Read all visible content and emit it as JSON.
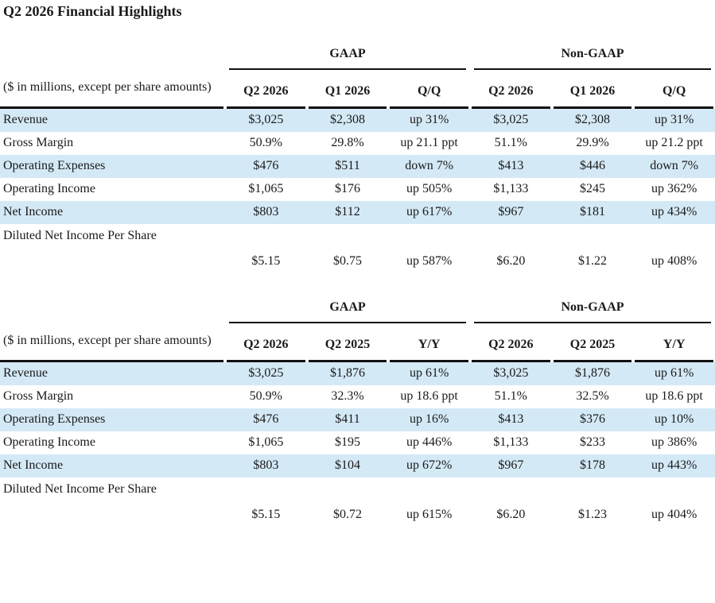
{
  "title": "Q2 2026 Financial Highlights",
  "colors": {
    "shaded_row": "#d4e9f6",
    "rule": "#111111",
    "text": "#1a1a1a",
    "background": "#ffffff"
  },
  "tables": [
    {
      "name": "quarter-over-quarter",
      "note": "($ in millions, except per share amounts)",
      "groups": [
        "GAAP",
        "Non-GAAP"
      ],
      "columns": [
        "Q2 2026",
        "Q1 2026",
        "Q/Q",
        "Q2 2026",
        "Q1 2026",
        "Q/Q"
      ],
      "rows": [
        {
          "label": "Revenue",
          "values": [
            "$3,025",
            "$2,308",
            "up 31%",
            "$3,025",
            "$2,308",
            "up 31%"
          ]
        },
        {
          "label": "Gross Margin",
          "values": [
            "50.9%",
            "29.8%",
            "up 21.1 ppt",
            "51.1%",
            "29.9%",
            "up 21.2 ppt"
          ]
        },
        {
          "label": "Operating Expenses",
          "values": [
            "$476",
            "$511",
            "down 7%",
            "$413",
            "$446",
            "down 7%"
          ]
        },
        {
          "label": "Operating Income",
          "values": [
            "$1,065",
            "$176",
            "up 505%",
            "$1,133",
            "$245",
            "up 362%"
          ]
        },
        {
          "label": "Net Income",
          "values": [
            "$803",
            "$112",
            "up 617%",
            "$967",
            "$181",
            "up 434%"
          ]
        },
        {
          "label": "Diluted Net Income Per Share",
          "values": [
            "$5.15",
            "$0.75",
            "up 587%",
            "$6.20",
            "$1.22",
            "up 408%"
          ]
        }
      ]
    },
    {
      "name": "year-over-year",
      "note": "($ in millions, except per share amounts)",
      "groups": [
        "GAAP",
        "Non-GAAP"
      ],
      "columns": [
        "Q2 2026",
        "Q2 2025",
        "Y/Y",
        "Q2 2026",
        "Q2 2025",
        "Y/Y"
      ],
      "rows": [
        {
          "label": "Revenue",
          "values": [
            "$3,025",
            "$1,876",
            "up 61%",
            "$3,025",
            "$1,876",
            "up 61%"
          ]
        },
        {
          "label": "Gross Margin",
          "values": [
            "50.9%",
            "32.3%",
            "up 18.6 ppt",
            "51.1%",
            "32.5%",
            "up 18.6 ppt"
          ]
        },
        {
          "label": "Operating Expenses",
          "values": [
            "$476",
            "$411",
            "up 16%",
            "$413",
            "$376",
            "up 10%"
          ]
        },
        {
          "label": "Operating Income",
          "values": [
            "$1,065",
            "$195",
            "up 446%",
            "$1,133",
            "$233",
            "up 386%"
          ]
        },
        {
          "label": "Net Income",
          "values": [
            "$803",
            "$104",
            "up 672%",
            "$967",
            "$178",
            "up 443%"
          ]
        },
        {
          "label": "Diluted Net Income Per Share",
          "values": [
            "$5.15",
            "$0.72",
            "up 615%",
            "$6.20",
            "$1.23",
            "up 404%"
          ]
        }
      ]
    }
  ]
}
